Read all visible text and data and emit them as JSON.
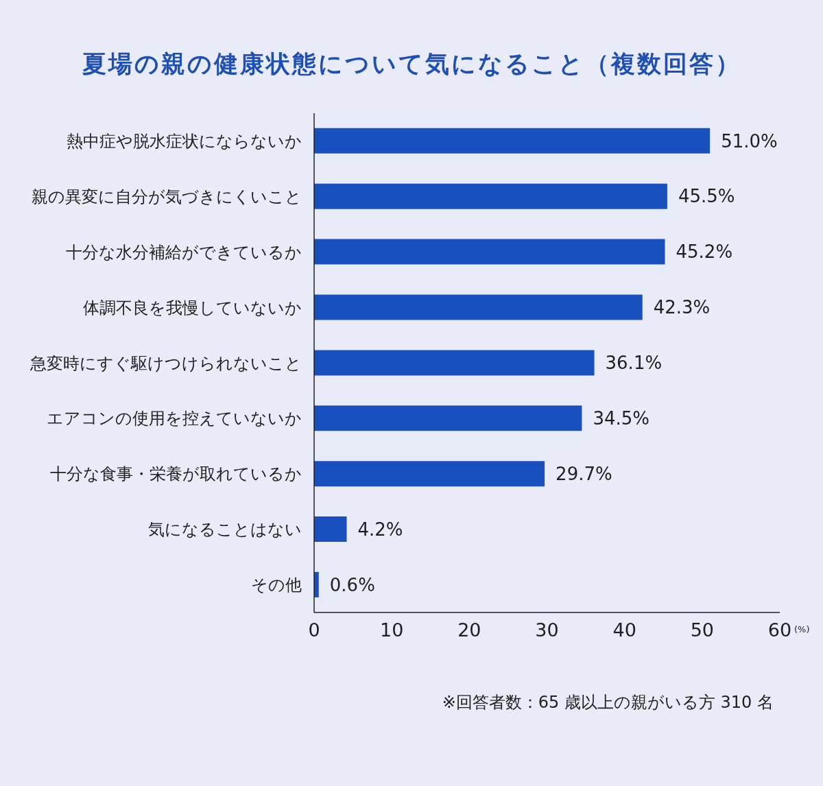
{
  "chart_data": {
    "type": "bar",
    "orientation": "horizontal",
    "title": "夏場の親の健康状態について気になること（複数回答）",
    "xlabel": "(%)",
    "categories": [
      "熱中症や脱水症状にならないか",
      "親の異変に自分が気づきにくいこと",
      "十分な水分補給ができているか",
      "体調不良を我慢していないか",
      "急変時にすぐ駆けつけられないこと",
      "エアコンの使用を控えていないか",
      "十分な食事・栄養が取れているか",
      "気になることはない",
      "その他"
    ],
    "values": [
      51.0,
      45.5,
      45.2,
      42.3,
      36.1,
      34.5,
      29.7,
      4.2,
      0.6
    ],
    "value_labels": [
      "51.0%",
      "45.5%",
      "45.2%",
      "42.3%",
      "36.1%",
      "34.5%",
      "29.7%",
      "4.2%",
      "0.6%"
    ],
    "color": "#1a4fbe",
    "xlim": [
      0,
      60
    ],
    "xticks": [
      0,
      10,
      20,
      30,
      40,
      50,
      60
    ],
    "annotations": [
      "※回答者数：65 歳以上の親がいる方 310 名"
    ]
  }
}
